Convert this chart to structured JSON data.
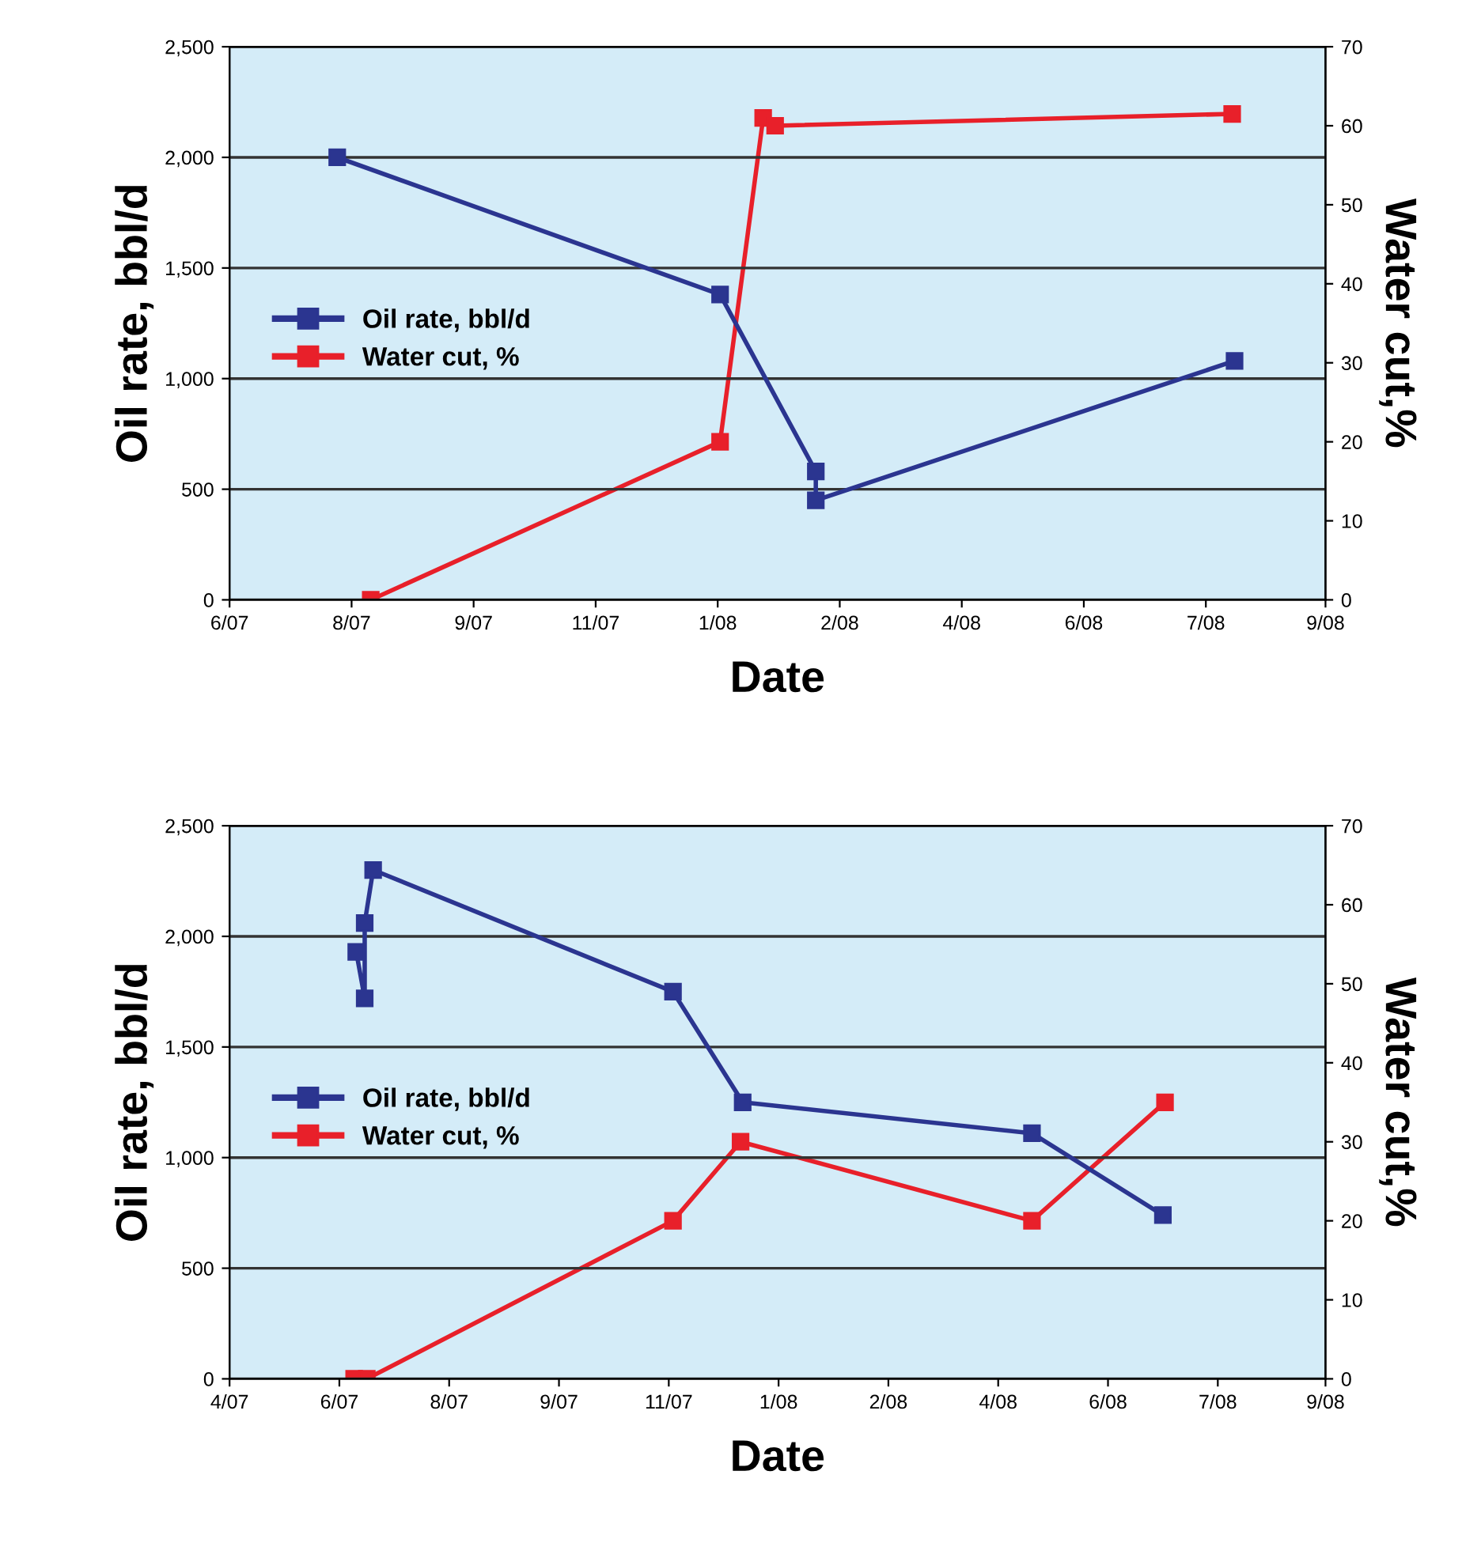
{
  "chart_data": [
    {
      "type": "line",
      "xlabel": "Date",
      "ylabel": "Oil rate, bbl/d",
      "y2label": "Water cut,%",
      "marker": "square",
      "line_style": "solid",
      "grid": "y",
      "legend": "left",
      "xlim": [
        "2007-06-01",
        "2008-09-01"
      ],
      "xticks": [
        {
          "value": "2007-06-01",
          "label": "6/07"
        },
        {
          "value": "2007-07-22",
          "label": "8/07"
        },
        {
          "value": "2007-09-11",
          "label": "9/07"
        },
        {
          "value": "2007-11-01",
          "label": "11/07"
        },
        {
          "value": "2007-12-22",
          "label": "1/08"
        },
        {
          "value": "2008-02-11",
          "label": "2/08"
        },
        {
          "value": "2008-04-02",
          "label": "4/08"
        },
        {
          "value": "2008-05-23",
          "label": "6/08"
        },
        {
          "value": "2008-07-13",
          "label": "7/08"
        },
        {
          "value": "2008-09-01",
          "label": "9/08"
        }
      ],
      "ylim": [
        0,
        2500
      ],
      "yticks": [
        {
          "value": 0,
          "label": "0"
        },
        {
          "value": 500,
          "label": "500"
        },
        {
          "value": 1000,
          "label": "1,000"
        },
        {
          "value": 1500,
          "label": "1,500"
        },
        {
          "value": 2000,
          "label": "2,000"
        },
        {
          "value": 2500,
          "label": "2,500"
        }
      ],
      "y2lim": [
        0,
        70
      ],
      "y2ticks": [
        0,
        10,
        20,
        30,
        40,
        50,
        60,
        70
      ],
      "series": [
        {
          "name": "Oil rate, bbl/d",
          "color": "#2b3590",
          "x": [
            "2007-07-16",
            "2007-12-23",
            "2008-02-01",
            "2008-02-01",
            "2008-07-25"
          ],
          "values": [
            2000,
            1380,
            580,
            450,
            1080
          ]
        },
        {
          "name": "Water cut, %",
          "color": "#e8202a",
          "axis": "y2",
          "x": [
            "2007-07-30",
            "2007-12-23",
            "2008-01-10",
            "2008-01-15",
            "2008-07-24"
          ],
          "values": [
            0,
            20,
            61,
            60,
            61.5
          ]
        }
      ]
    },
    {
      "type": "line",
      "xlabel": "Date",
      "ylabel": "Oil rate, bbl/d",
      "y2label": "Water cut,%",
      "marker": "square",
      "line_style": "solid",
      "grid": "y",
      "legend": "left",
      "xlim": [
        "2007-04-01",
        "2008-09-01"
      ],
      "xticks": [
        {
          "value": "2007-04-01",
          "label": "4/07"
        },
        {
          "value": "2007-05-23",
          "label": "6/07"
        },
        {
          "value": "2007-07-14",
          "label": "8/07"
        },
        {
          "value": "2007-09-04",
          "label": "9/07"
        },
        {
          "value": "2007-10-26",
          "label": "11/07"
        },
        {
          "value": "2007-12-17",
          "label": "1/08"
        },
        {
          "value": "2008-02-07",
          "label": "2/08"
        },
        {
          "value": "2008-03-30",
          "label": "4/08"
        },
        {
          "value": "2008-05-21",
          "label": "6/08"
        },
        {
          "value": "2008-07-12",
          "label": "7/08"
        },
        {
          "value": "2008-09-01",
          "label": "9/08"
        }
      ],
      "ylim": [
        0,
        2500
      ],
      "yticks": [
        {
          "value": 0,
          "label": "0"
        },
        {
          "value": 500,
          "label": "500"
        },
        {
          "value": 1000,
          "label": "1,000"
        },
        {
          "value": 1500,
          "label": "1,500"
        },
        {
          "value": 2000,
          "label": "2,000"
        },
        {
          "value": 2500,
          "label": "2,500"
        }
      ],
      "y2lim": [
        0,
        70
      ],
      "y2ticks": [
        0,
        10,
        20,
        30,
        40,
        50,
        60,
        70
      ],
      "series": [
        {
          "name": "Oil rate, bbl/d",
          "color": "#2b3590",
          "x": [
            "2007-05-31",
            "2007-06-04",
            "2007-06-04",
            "2007-06-08",
            "2007-10-28",
            "2007-11-30",
            "2008-04-15",
            "2008-06-16"
          ],
          "values": [
            1930,
            1720,
            2060,
            2300,
            1750,
            1250,
            1110,
            740
          ]
        },
        {
          "name": "Water cut, %",
          "color": "#e8202a",
          "axis": "y2",
          "x": [
            "2007-05-30",
            "2007-06-05",
            "2007-10-28",
            "2007-11-29",
            "2008-04-15",
            "2008-06-17"
          ],
          "values": [
            0,
            0,
            20,
            30,
            20,
            35
          ]
        }
      ]
    }
  ]
}
